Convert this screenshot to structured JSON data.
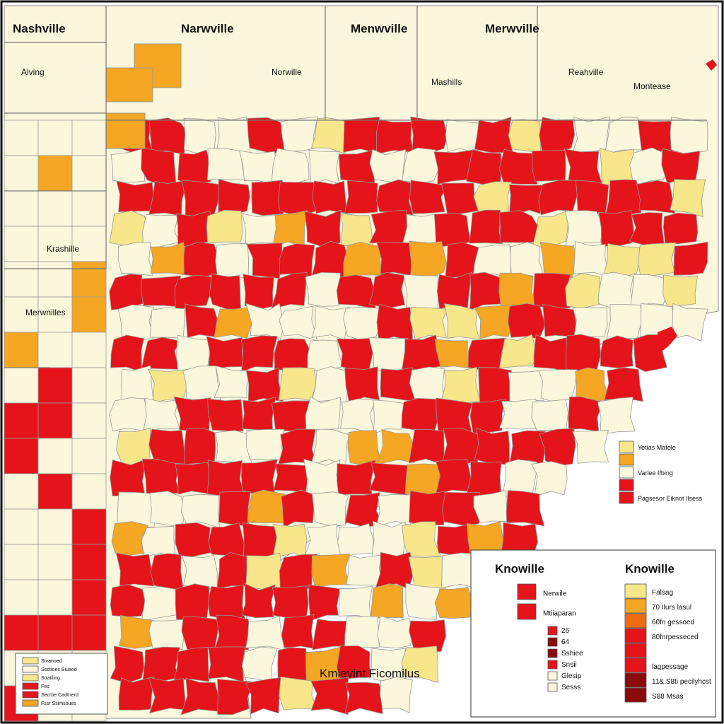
{
  "colors": {
    "cream": "#fbf7dc",
    "light_yellow": "#f7e78a",
    "orange": "#f5a623",
    "dark_orange": "#ee6d12",
    "red": "#e4141a",
    "dark_red": "#8b0a0a",
    "border": "#8a8a8a",
    "ocean": "#ffffff"
  },
  "map_labels": {
    "nw1": "Nashville",
    "nw2": "Narwville",
    "n3": "Menwville",
    "n4": "Merwville",
    "w1": "Alving",
    "n5": "Norwille",
    "n6": "Mashills",
    "e1": "Reahville",
    "e2": "Montease",
    "w2": "Krashille",
    "w3": "Merwnilles",
    "sea": "Kmievint Ficomilus"
  },
  "legend_right": {
    "items": [
      {
        "label": "Yetias Matele",
        "color": "#f7e78a"
      },
      {
        "label": "",
        "color": "#f5a623"
      },
      {
        "label": "Varlee Ifbing",
        "color": "#fbf7dc"
      },
      {
        "label": "",
        "color": "#e4141a"
      },
      {
        "label": "Pagsesor Eiknot Ilsess",
        "color": "#e4141a"
      }
    ]
  },
  "legend_box": {
    "title_left": "Knowille",
    "title_right": "Knowille",
    "left_items": [
      {
        "label": "Nerwile",
        "color": "#e4141a"
      },
      {
        "label": "Mtiiaparan",
        "color": "#e4141a"
      },
      {
        "label": "26",
        "color": "#e4141a"
      },
      {
        "label": "64",
        "color": "#8b0a0a"
      },
      {
        "label": "Sshiee",
        "color": "#8b0a0a"
      },
      {
        "label": "Snsii",
        "color": "#e4141a"
      },
      {
        "label": "Glesip",
        "color": "#fbf7dc"
      },
      {
        "label": "Sesss",
        "color": "#fbf7dc"
      }
    ],
    "right_items": [
      {
        "label": "Falsag",
        "color": "#f7e78a"
      },
      {
        "label": "70 Ilurs lasul",
        "color": "#f5a623"
      },
      {
        "label": "60fn gessoed",
        "color": "#ee6d12"
      },
      {
        "label": "80fnrpesseced",
        "color": "#e4141a"
      },
      {
        "label": "",
        "color": "#e4141a"
      },
      {
        "label": "lagpessage",
        "color": "#e4141a"
      },
      {
        "label": "11&.S8ti pecilyhcst",
        "color": "#8b0a0a"
      },
      {
        "label": "S88 Msas",
        "color": "#8b0a0a"
      }
    ]
  },
  "legend_small": {
    "items": [
      {
        "label": "Stvanoed",
        "color": "#f7e78a"
      },
      {
        "label": "Sectioes Biuaod",
        "color": "#fbf7dc"
      },
      {
        "label": "Suatiling",
        "color": "#f7e78a"
      },
      {
        "label": "Fes",
        "color": "#e4141a"
      },
      {
        "label": "Secrbe Cadtnerd",
        "color": "#e4141a"
      },
      {
        "label": "Fssr Ssimsoues",
        "color": "#f5a623"
      }
    ]
  }
}
